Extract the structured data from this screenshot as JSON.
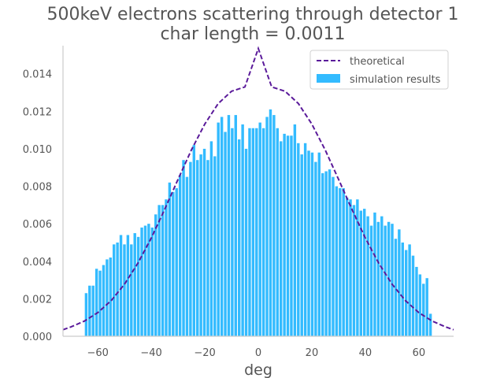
{
  "chart_data": {
    "type": "bar",
    "title": "500keV electrons scattering through detector 1",
    "subtitle": "char length = 0.0011",
    "xlabel": "deg",
    "ylabel": "",
    "xlim": [
      -73,
      73
    ],
    "ylim": [
      0,
      0.0155
    ],
    "xticks": [
      -60,
      -40,
      -20,
      0,
      20,
      40,
      60
    ],
    "xtick_labels": [
      "−60",
      "−40",
      "−20",
      "0",
      "20",
      "40",
      "60"
    ],
    "yticks": [
      0,
      0.002,
      0.004,
      0.006,
      0.008,
      0.01,
      0.012,
      0.014
    ],
    "ytick_labels": [
      "0.000",
      "0.002",
      "0.004",
      "0.006",
      "0.008",
      "0.010",
      "0.012",
      "0.014"
    ],
    "grid": false,
    "legend_position": "top-right",
    "bin_width": 1.3,
    "series": [
      {
        "name": "simulation results",
        "kind": "histogram",
        "color": "#33bbff",
        "x": [
          -64.35,
          -63.05,
          -61.75,
          -60.45,
          -59.15,
          -57.85,
          -56.55,
          -55.25,
          -53.95,
          -52.65,
          -51.35,
          -50.05,
          -48.75,
          -47.45,
          -46.15,
          -44.85,
          -43.55,
          -42.25,
          -40.95,
          -39.65,
          -38.35,
          -37.05,
          -35.75,
          -34.45,
          -33.15,
          -31.85,
          -30.55,
          -29.25,
          -27.95,
          -26.65,
          -25.35,
          -24.05,
          -22.75,
          -21.45,
          -20.15,
          -18.85,
          -17.55,
          -16.25,
          -14.95,
          -13.65,
          -12.35,
          -11.05,
          -9.75,
          -8.45,
          -7.15,
          -5.85,
          -4.55,
          -3.25,
          -1.95,
          -0.65,
          0.65,
          1.95,
          3.25,
          4.55,
          5.85,
          7.15,
          8.45,
          9.75,
          11.05,
          12.35,
          13.65,
          14.95,
          16.25,
          17.55,
          18.85,
          20.15,
          21.45,
          22.75,
          24.05,
          25.35,
          26.65,
          27.95,
          29.25,
          30.55,
          31.85,
          33.15,
          34.45,
          35.75,
          37.05,
          38.35,
          39.65,
          40.95,
          42.25,
          43.55,
          44.85,
          46.15,
          47.45,
          48.75,
          50.05,
          51.35,
          52.65,
          53.95,
          55.25,
          56.55,
          57.85,
          59.15,
          60.45,
          61.75,
          63.05,
          64.35
        ],
        "values": [
          0.0023,
          0.0027,
          0.0027,
          0.0036,
          0.0035,
          0.0038,
          0.0041,
          0.0042,
          0.0049,
          0.005,
          0.0054,
          0.0049,
          0.0054,
          0.0049,
          0.0055,
          0.0053,
          0.0058,
          0.0059,
          0.006,
          0.0058,
          0.0065,
          0.007,
          0.007,
          0.0073,
          0.0082,
          0.0077,
          0.0079,
          0.0086,
          0.0094,
          0.0085,
          0.0093,
          0.0102,
          0.0094,
          0.0097,
          0.01,
          0.0094,
          0.0104,
          0.0096,
          0.0114,
          0.0117,
          0.0109,
          0.0118,
          0.0111,
          0.0118,
          0.0105,
          0.0113,
          0.01,
          0.0111,
          0.0111,
          0.0111,
          0.0114,
          0.0111,
          0.0117,
          0.0121,
          0.0118,
          0.0111,
          0.0104,
          0.0108,
          0.0107,
          0.0107,
          0.0113,
          0.0103,
          0.0097,
          0.0103,
          0.0099,
          0.0098,
          0.0093,
          0.0098,
          0.0087,
          0.0088,
          0.0089,
          0.0085,
          0.008,
          0.0079,
          0.0079,
          0.0074,
          0.0073,
          0.007,
          0.0073,
          0.0067,
          0.0068,
          0.0064,
          0.0059,
          0.0066,
          0.0061,
          0.0064,
          0.0059,
          0.0061,
          0.006,
          0.0052,
          0.0057,
          0.005,
          0.0046,
          0.0049,
          0.0043,
          0.0037,
          0.0033,
          0.0028,
          0.0031,
          0.0012
        ]
      },
      {
        "name": "theoretical",
        "kind": "line",
        "style": "dashed",
        "color": "#5a1a9a",
        "x": [
          -73,
          -70,
          -65,
          -60,
          -55,
          -50,
          -45,
          -40,
          -35,
          -30,
          -25,
          -20,
          -15,
          -10,
          -5,
          0,
          5,
          10,
          15,
          20,
          25,
          30,
          35,
          40,
          45,
          50,
          55,
          60,
          65,
          70,
          73
        ],
        "values": [
          0.00035,
          0.0005,
          0.00081,
          0.00126,
          0.0019,
          0.00278,
          0.0039,
          0.00524,
          0.00677,
          0.00837,
          0.00994,
          0.01132,
          0.01241,
          0.01307,
          0.0133,
          0.01535,
          0.0133,
          0.01307,
          0.01241,
          0.01132,
          0.00994,
          0.00837,
          0.00677,
          0.00524,
          0.0039,
          0.00278,
          0.0019,
          0.00126,
          0.00081,
          0.0005,
          0.00035
        ]
      }
    ]
  }
}
